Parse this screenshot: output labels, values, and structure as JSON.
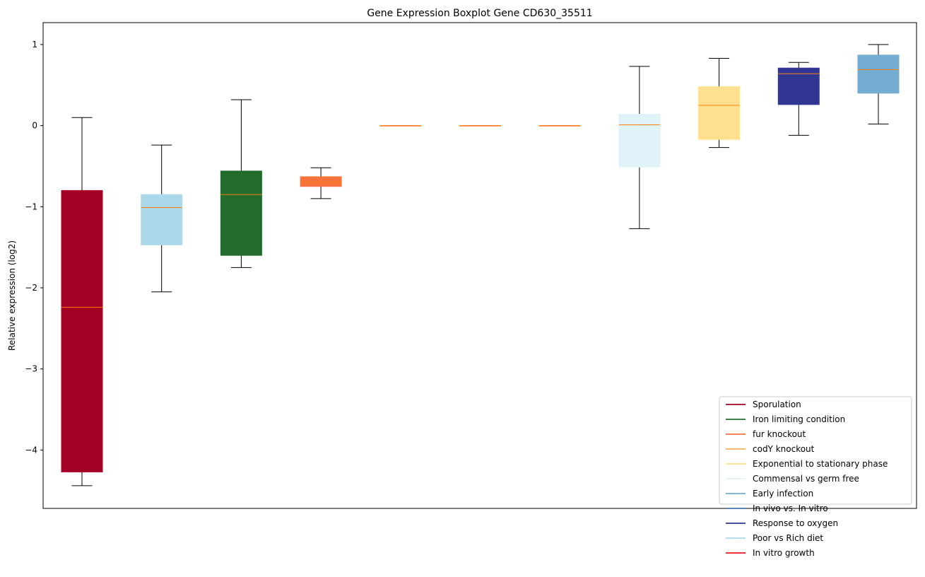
{
  "chart_data": {
    "type": "boxplot",
    "title": "Gene Expression Boxplot Gene CD630_35511",
    "xlabel": "",
    "ylabel": "Relative expression (log2)",
    "ylim": [
      -4.72,
      1.27
    ],
    "yticks": [
      1,
      0,
      -1,
      -2,
      -3,
      -4
    ],
    "ytick_labels": [
      "1",
      "0",
      "−1",
      "−2",
      "−3",
      "−4"
    ],
    "median_color": "#ff7f0e",
    "boxes": [
      {
        "whislo": -4.44,
        "q1": -4.27,
        "med": -2.24,
        "q3": -0.8,
        "whishi": 0.1,
        "color": "#a50026"
      },
      {
        "whislo": -2.05,
        "q1": -1.47,
        "med": -1.01,
        "q3": -0.85,
        "whishi": -0.24,
        "color": "#abd9e9"
      },
      {
        "whislo": -1.75,
        "q1": -1.6,
        "med": -0.85,
        "q3": -0.56,
        "whishi": 0.32,
        "color": "#226b2d"
      },
      {
        "whislo": -0.9,
        "q1": -0.75,
        "med": -0.7,
        "q3": -0.63,
        "whishi": -0.52,
        "color": "#f67340"
      },
      {
        "whislo": 0.0,
        "q1": 0.0,
        "med": 0.0,
        "q3": 0.0,
        "whishi": 0.0,
        "color": "#f67340"
      },
      {
        "whislo": 0.0,
        "q1": 0.0,
        "med": 0.0,
        "q3": 0.0,
        "whishi": 0.0,
        "color": "#f67340"
      },
      {
        "whislo": 0.0,
        "q1": 0.0,
        "med": 0.0,
        "q3": 0.0,
        "whishi": 0.0,
        "color": "#f67340"
      },
      {
        "whislo": -1.27,
        "q1": -0.51,
        "med": 0.01,
        "q3": 0.14,
        "whishi": 0.73,
        "color": "#e0f3f8"
      },
      {
        "whislo": -0.27,
        "q1": -0.17,
        "med": 0.25,
        "q3": 0.48,
        "whishi": 0.83,
        "color": "#fee090"
      },
      {
        "whislo": -0.12,
        "q1": 0.26,
        "med": 0.64,
        "q3": 0.71,
        "whishi": 0.78,
        "color": "#313695"
      },
      {
        "whislo": 0.02,
        "q1": 0.4,
        "med": 0.69,
        "q3": 0.87,
        "whishi": 1.0,
        "color": "#74add1"
      }
    ],
    "legend": {
      "placement": "lower-right",
      "entries": [
        {
          "label": "Sporulation",
          "color": "#a50026"
        },
        {
          "label": "Iron limiting condition",
          "color": "#226b2d"
        },
        {
          "label": "fur knockout",
          "color": "#f67340"
        },
        {
          "label": "codY knockout",
          "color": "#fdae61"
        },
        {
          "label": "Exponential to stationary phase",
          "color": "#fee090"
        },
        {
          "label": "Commensal vs germ free",
          "color": "#e0f3f8"
        },
        {
          "label": "Early infection",
          "color": "#74add1"
        },
        {
          "label": "In vivo vs. In vitro",
          "color": "#4575b4"
        },
        {
          "label": "Response to oxygen",
          "color": "#313695"
        },
        {
          "label": "Poor vs Rich diet",
          "color": "#abd9e9"
        },
        {
          "label": "In vitro growth",
          "color": "#e41a1c"
        }
      ]
    }
  }
}
